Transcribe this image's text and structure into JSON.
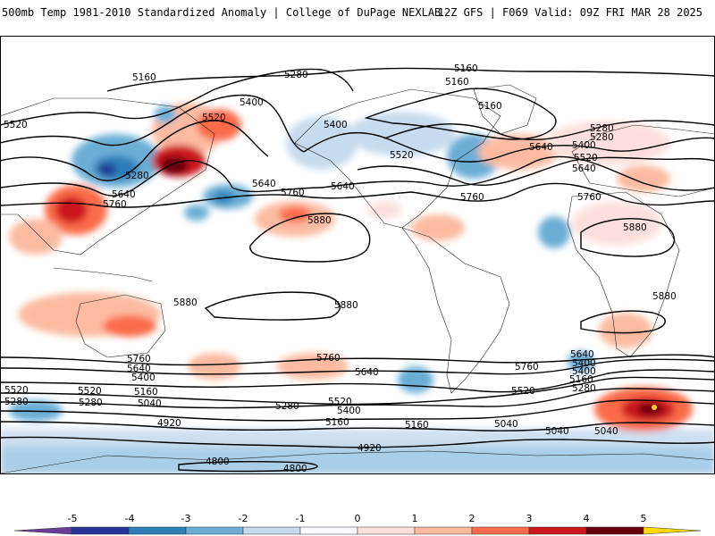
{
  "header": {
    "title_left": "500mb Temp 1981-2010 Standardized Anomaly | College of DuPage NEXLAB",
    "title_right": "12Z GFS | F069 Valid: 09Z FRI MAR 28 2025"
  },
  "map": {
    "contour_color": "#000000",
    "coastline_color": "#222222",
    "contour_labels": [
      "5160",
      "5280",
      "5160",
      "5160",
      "5160",
      "5520",
      "5400",
      "5520",
      "5400",
      "5280",
      "5640",
      "5760",
      "5280",
      "5640",
      "5760",
      "5640",
      "5760",
      "5880",
      "5520",
      "5640",
      "5400",
      "5280",
      "5520",
      "5640",
      "5760",
      "5880",
      "5880",
      "5880",
      "5880",
      "5760",
      "5640",
      "5520",
      "5400",
      "5280",
      "5160",
      "5040",
      "5760",
      "5640",
      "5520",
      "5400",
      "5280",
      "5160",
      "4920",
      "4920",
      "4800",
      "4800",
      "5280",
      "5520",
      "5400",
      "5160",
      "5040",
      "5760",
      "5640",
      "5400",
      "5520",
      "5280",
      "5160",
      "5040",
      "5040"
    ]
  },
  "legend": {
    "tick_labels": [
      "-5",
      "-4",
      "-3",
      "-2",
      "-1",
      "0",
      "1",
      "2",
      "3",
      "4",
      "5"
    ],
    "colors": [
      "#6a3d9a",
      "#253494",
      "#2c7fb8",
      "#6baed6",
      "#c6dbef",
      "#f7fbff",
      "#fde0dd",
      "#fcbba1",
      "#fb6a4a",
      "#cb181d",
      "#67000d",
      "#ffd700"
    ]
  }
}
